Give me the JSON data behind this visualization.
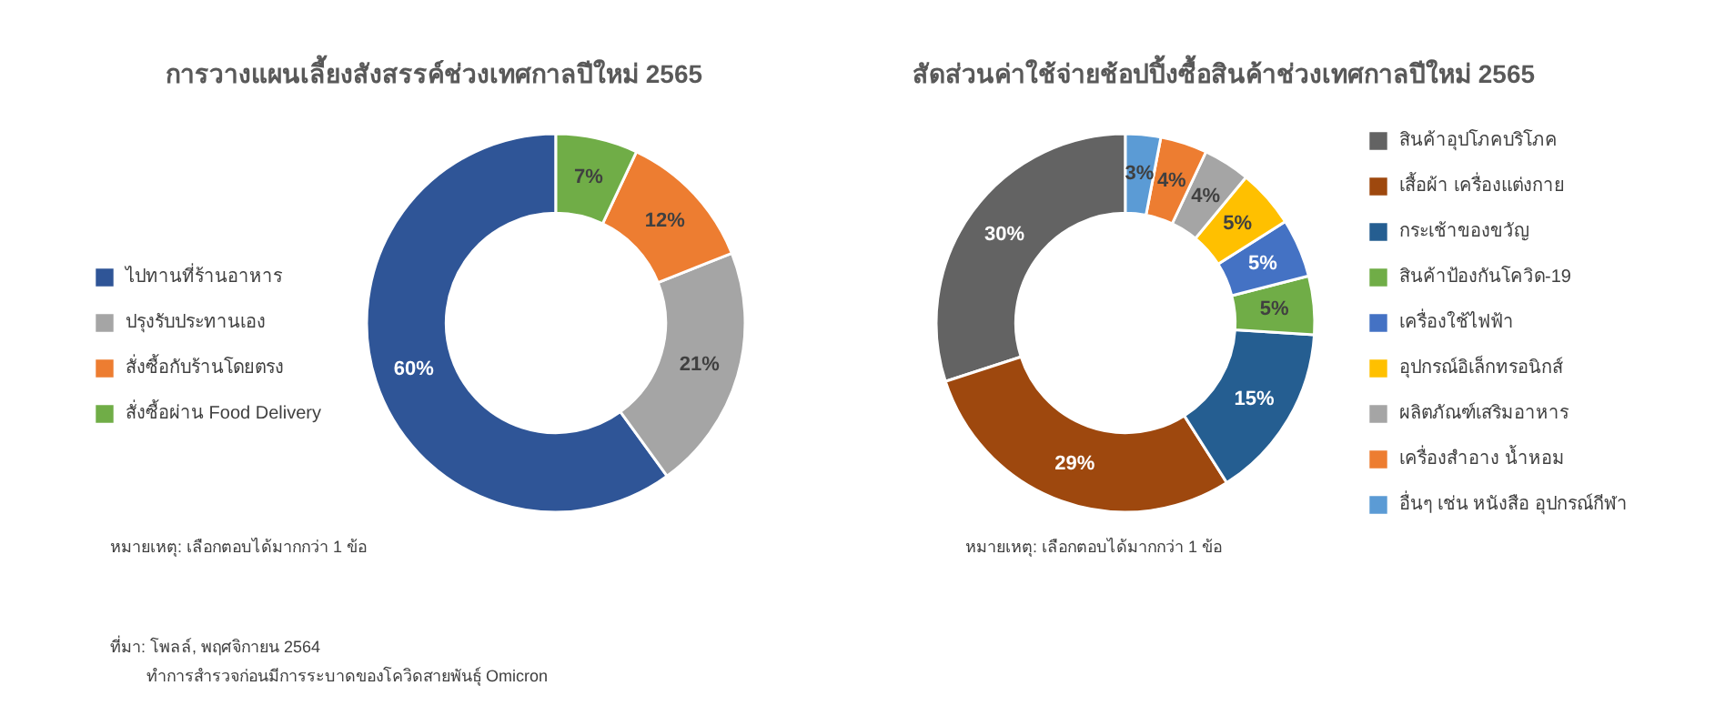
{
  "chart_data": [
    {
      "type": "donut",
      "title": "การวางแผนเลี้ยงสังสรรค์ช่วงเทศกาลปีใหม่ 2565",
      "categories": [
        "ไปทานที่ร้านอาหาร",
        "ปรุงรับประทานเอง",
        "สั่งซื้อกับร้านโดยตรง",
        "สั่งซื้อผ่าน Food Delivery"
      ],
      "values": [
        60,
        21,
        12,
        7
      ],
      "value_labels": [
        "60%",
        "21%",
        "12%",
        "7%"
      ],
      "colors": [
        "#2f5597",
        "#a5a5a5",
        "#ed7d31",
        "#70ad47"
      ],
      "legend": "left",
      "annotations": [
        "หมายเหตุ: เลือกตอบได้มากกว่า 1 ข้อ",
        "ที่มา: โพลล์, พฤศจิกายน 2564",
        "ทำการสำรวจก่อนมีการระบาดของโควิดสายพันธุ์ Omicron"
      ]
    },
    {
      "type": "donut",
      "title": "สัดส่วนค่าใช้จ่ายช้อปปิ้งซื้อสินค้าช่วงเทศกาลปีใหม่ 2565",
      "categories": [
        "สินค้าอุปโภคบริโภค",
        "เสื้อผ้า เครื่องแต่งกาย",
        "กระเช้าของขวัญ",
        "สินค้าป้องกันโควิด-19",
        "เครื่องใช้ไฟฟ้า",
        "อุปกรณ์อิเล็กทรอนิกส์",
        "ผลิตภัณฑ์เสริมอาหาร",
        "เครื่องสำอาง น้ำหอม",
        "อื่นๆ เช่น หนังสือ อุปกรณ์กีฬา"
      ],
      "values": [
        30,
        29,
        15,
        5,
        5,
        5,
        4,
        4,
        3
      ],
      "value_labels": [
        "30%",
        "29%",
        "15%",
        "5%",
        "5%",
        "5%",
        "4%",
        "4%",
        "3%"
      ],
      "colors": [
        "#636363",
        "#9e480e",
        "#255e91",
        "#70ad47",
        "#4472c4",
        "#ffc000",
        "#a5a5a5",
        "#ed7d31",
        "#5b9bd5"
      ],
      "legend": "right",
      "annotations": [
        "หมายเหตุ: เลือกตอบได้มากกว่า 1 ข้อ"
      ]
    }
  ]
}
